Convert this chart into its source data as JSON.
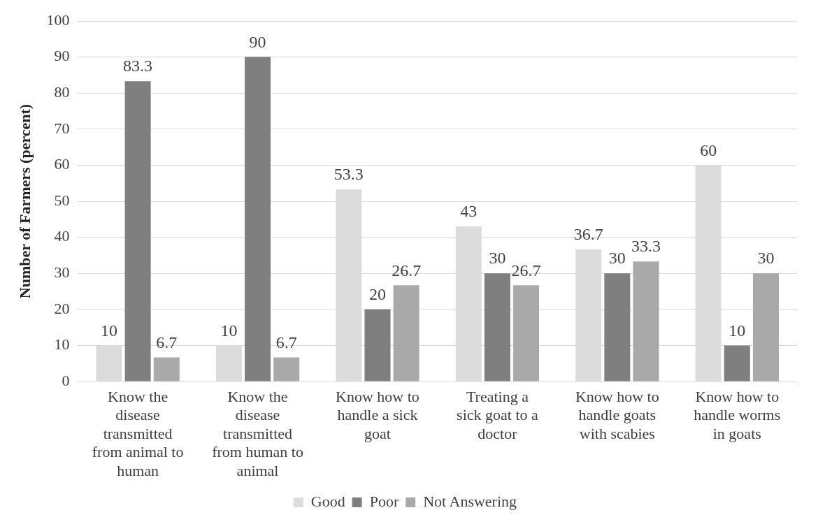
{
  "chart_data": {
    "type": "bar",
    "ylabel": "Number of Farmers (percent)",
    "categories": [
      "Know the disease transmitted from animal to human",
      "Know the disease transmitted from human to animal",
      "Know how to handle a sick goat",
      "Treating a sick goat to a doctor",
      "Know how to handle goats with scabies",
      "Know how to handle worms in goats"
    ],
    "series": [
      {
        "name": "Good",
        "color": "#dcdcdc",
        "values": [
          10,
          10,
          53.3,
          43,
          36.7,
          60
        ]
      },
      {
        "name": "Poor",
        "color": "#7f7f7f",
        "values": [
          83.3,
          90,
          20,
          30,
          30,
          10
        ]
      },
      {
        "name": "Not Answering",
        "color": "#a9a9a9",
        "values": [
          6.7,
          6.7,
          26.7,
          26.7,
          33.3,
          30
        ]
      }
    ],
    "ylim": [
      0,
      100
    ],
    "yticks": [
      0,
      10,
      20,
      30,
      40,
      50,
      60,
      70,
      80,
      90,
      100
    ],
    "grid": "y",
    "legend": "bottom",
    "data_labels": true
  }
}
